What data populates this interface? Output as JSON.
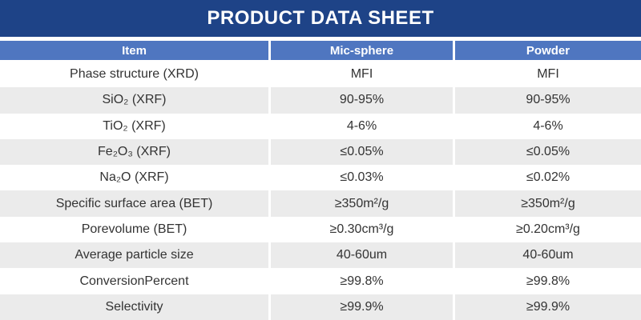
{
  "title": "PRODUCT DATA SHEET",
  "colors": {
    "title_bar": "#1e4387",
    "header_row": "#4f76c0",
    "stripe": "#ebebeb",
    "text": "#333333",
    "header_text": "#ffffff"
  },
  "table": {
    "columns": [
      "Item",
      "Mic-sphere",
      "Powder"
    ],
    "rows": [
      {
        "item": "Phase structure (XRD)",
        "mic_sphere": "MFI",
        "powder": "MFI"
      },
      {
        "item": "SiO₂ (XRF)",
        "mic_sphere": "90-95%",
        "powder": "90-95%"
      },
      {
        "item": "TiO₂ (XRF)",
        "mic_sphere": "4-6%",
        "powder": "4-6%"
      },
      {
        "item": "Fe₂O₃ (XRF)",
        "mic_sphere": "≤0.05%",
        "powder": "≤0.05%"
      },
      {
        "item": "Na₂O (XRF)",
        "mic_sphere": "≤0.03%",
        "powder": "≤0.02%"
      },
      {
        "item": "Specific surface area (BET)",
        "mic_sphere": "≥350m²/g",
        "powder": "≥350m²/g"
      },
      {
        "item": "Porevolume (BET)",
        "mic_sphere": "≥0.30cm³/g",
        "powder": "≥0.20cm³/g"
      },
      {
        "item": "Average particle size",
        "mic_sphere": "40-60um",
        "powder": "40-60um"
      },
      {
        "item": "ConversionPercent",
        "mic_sphere": "≥99.8%",
        "powder": "≥99.8%"
      },
      {
        "item": "Selectivity",
        "mic_sphere": "≥99.9%",
        "powder": "≥99.9%"
      }
    ]
  }
}
